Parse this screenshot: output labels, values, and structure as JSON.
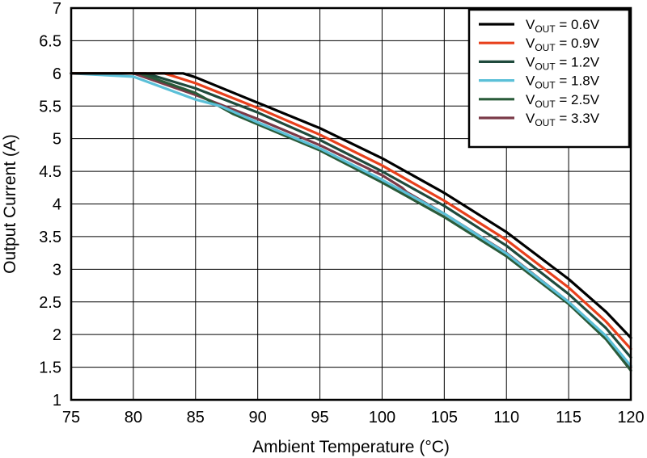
{
  "chart_data": {
    "type": "line",
    "title": "",
    "xlabel": "Ambient Temperature (°C)",
    "ylabel": "Output Current (A)",
    "xlim": [
      75,
      120
    ],
    "ylim": [
      1,
      7
    ],
    "x_ticks": [
      75,
      80,
      85,
      90,
      95,
      100,
      105,
      110,
      115,
      120
    ],
    "y_ticks": [
      1,
      1.5,
      2,
      2.5,
      3,
      3.5,
      4,
      4.5,
      5,
      5.5,
      6,
      6.5,
      7
    ],
    "x_tick_labels": [
      "75",
      "80",
      "85",
      "90",
      "95",
      "100",
      "105",
      "110",
      "115",
      "120"
    ],
    "y_tick_labels": [
      "1",
      "1.5",
      "2",
      "2.5",
      "3",
      "3.5",
      "4",
      "4.5",
      "5",
      "5.5",
      "6",
      "6.5",
      "7"
    ],
    "grid": true,
    "legend_position": "top-right",
    "series": [
      {
        "name": "0.6V",
        "color": "#000000",
        "points": [
          [
            75,
            6.0
          ],
          [
            84,
            6.0
          ],
          [
            85,
            5.94
          ],
          [
            90,
            5.55
          ],
          [
            95,
            5.16
          ],
          [
            100,
            4.7
          ],
          [
            105,
            4.17
          ],
          [
            110,
            3.57
          ],
          [
            115,
            2.85
          ],
          [
            118,
            2.35
          ],
          [
            120,
            1.95
          ]
        ]
      },
      {
        "name": "0.9V",
        "color": "#e8401c",
        "points": [
          [
            75,
            6.0
          ],
          [
            82.5,
            6.0
          ],
          [
            85,
            5.85
          ],
          [
            90,
            5.47
          ],
          [
            95,
            5.06
          ],
          [
            100,
            4.59
          ],
          [
            105,
            4.05
          ],
          [
            110,
            3.45
          ],
          [
            115,
            2.72
          ],
          [
            118,
            2.2
          ],
          [
            120,
            1.78
          ]
        ]
      },
      {
        "name": "1.2V",
        "color": "#1f4a3c",
        "points": [
          [
            75,
            6.0
          ],
          [
            81,
            6.0
          ],
          [
            85,
            5.77
          ],
          [
            90,
            5.4
          ],
          [
            95,
            4.98
          ],
          [
            100,
            4.5
          ],
          [
            105,
            3.97
          ],
          [
            110,
            3.36
          ],
          [
            115,
            2.62
          ],
          [
            118,
            2.1
          ],
          [
            120,
            1.65
          ]
        ]
      },
      {
        "name": "1.8V",
        "color": "#5bc0d8",
        "points": [
          [
            75,
            6.0
          ],
          [
            80,
            5.95
          ],
          [
            85,
            5.6
          ],
          [
            87,
            5.5
          ],
          [
            90,
            5.25
          ],
          [
            95,
            4.85
          ],
          [
            100,
            4.37
          ],
          [
            105,
            3.85
          ],
          [
            110,
            3.24
          ],
          [
            115,
            2.5
          ],
          [
            118,
            1.98
          ],
          [
            120,
            1.52
          ]
        ]
      },
      {
        "name": "2.5V",
        "color": "#2a5b3a",
        "points": [
          [
            75,
            6.0
          ],
          [
            80.5,
            6.0
          ],
          [
            85,
            5.7
          ],
          [
            88,
            5.38
          ],
          [
            90,
            5.22
          ],
          [
            95,
            4.82
          ],
          [
            100,
            4.33
          ],
          [
            105,
            3.8
          ],
          [
            110,
            3.2
          ],
          [
            115,
            2.47
          ],
          [
            118,
            1.93
          ],
          [
            120,
            1.45
          ]
        ]
      },
      {
        "name": "3.3V",
        "color": "#7a3a48",
        "points": [
          [
            75,
            6.0
          ],
          [
            80,
            6.0
          ],
          [
            85,
            5.67
          ],
          [
            90,
            5.3
          ],
          [
            95,
            4.9
          ],
          [
            100,
            4.44
          ],
          [
            101.6,
            4.25
          ],
          [
            102,
            4.18
          ],
          [
            105,
            3.85
          ],
          [
            110,
            3.25
          ],
          [
            115,
            2.5
          ],
          [
            118,
            1.97
          ],
          [
            120,
            1.5
          ]
        ]
      }
    ]
  },
  "legend": {
    "prefix_main": "V",
    "prefix_sub": "OUT",
    "separator": " = "
  }
}
